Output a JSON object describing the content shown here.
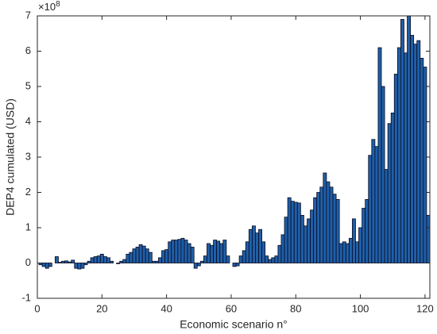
{
  "chart_data": {
    "type": "bar",
    "xlabel": "Economic scenario n°",
    "ylabel": "DEP4 cumulated (USD)",
    "y_scale_label": {
      "base": "×10",
      "exponent": "8"
    },
    "x": [
      1,
      2,
      3,
      4,
      5,
      6,
      7,
      8,
      9,
      10,
      11,
      12,
      13,
      14,
      15,
      16,
      17,
      18,
      19,
      20,
      21,
      22,
      23,
      24,
      25,
      26,
      27,
      28,
      29,
      30,
      31,
      32,
      33,
      34,
      35,
      36,
      37,
      38,
      39,
      40,
      41,
      42,
      43,
      44,
      45,
      46,
      47,
      48,
      49,
      50,
      51,
      52,
      53,
      54,
      55,
      56,
      57,
      58,
      59,
      60,
      61,
      62,
      63,
      64,
      65,
      66,
      67,
      68,
      69,
      70,
      71,
      72,
      73,
      74,
      75,
      76,
      77,
      78,
      79,
      80,
      81,
      82,
      83,
      84,
      85,
      86,
      87,
      88,
      89,
      90,
      91,
      92,
      93,
      94,
      95,
      96,
      97,
      98,
      99,
      100,
      101,
      102,
      103,
      104,
      105,
      106,
      107,
      108,
      109,
      110,
      111,
      112,
      113,
      114,
      115,
      116,
      117,
      118,
      119,
      120,
      121
    ],
    "values": [
      -0.05,
      -0.1,
      -0.15,
      -0.1,
      0.0,
      0.18,
      0.02,
      0.05,
      0.06,
      0.03,
      0.08,
      -0.15,
      -0.17,
      -0.15,
      -0.05,
      0.05,
      0.15,
      0.18,
      0.2,
      0.25,
      0.18,
      0.15,
      0.05,
      0.0,
      -0.02,
      0.05,
      0.1,
      0.25,
      0.3,
      0.4,
      0.45,
      0.52,
      0.48,
      0.4,
      0.3,
      0.05,
      0.05,
      0.15,
      0.35,
      0.38,
      0.6,
      0.65,
      0.65,
      0.67,
      0.7,
      0.65,
      0.55,
      0.45,
      -0.15,
      -0.08,
      0.05,
      0.2,
      0.55,
      0.5,
      0.65,
      0.62,
      0.55,
      0.65,
      0.2,
      0.0,
      -0.1,
      -0.08,
      0.2,
      0.35,
      0.6,
      0.95,
      1.05,
      0.85,
      0.95,
      0.6,
      0.2,
      0.1,
      0.15,
      0.2,
      0.5,
      0.8,
      1.3,
      1.85,
      1.75,
      1.72,
      1.7,
      1.35,
      1.05,
      1.25,
      1.5,
      1.85,
      2.0,
      2.15,
      2.55,
      2.3,
      2.15,
      1.95,
      1.8,
      0.55,
      0.6,
      0.55,
      0.7,
      1.25,
      0.6,
      1.0,
      1.55,
      1.8,
      3.05,
      3.5,
      3.3,
      6.1,
      5.0,
      2.65,
      3.95,
      4.25,
      5.35,
      6.1,
      6.9,
      5.95,
      7.0,
      6.45,
      6.2,
      6.3,
      5.8,
      5.55,
      1.35
    ],
    "color": "#1f5fa8",
    "edgecolor": "#0a0a1e",
    "xlim": [
      0,
      121.5
    ],
    "xticks": [
      0,
      20,
      40,
      60,
      80,
      100,
      120
    ],
    "ylim": [
      -1,
      7
    ],
    "yticks": [
      -1,
      0,
      1,
      2,
      3,
      4,
      5,
      6,
      7
    ]
  }
}
